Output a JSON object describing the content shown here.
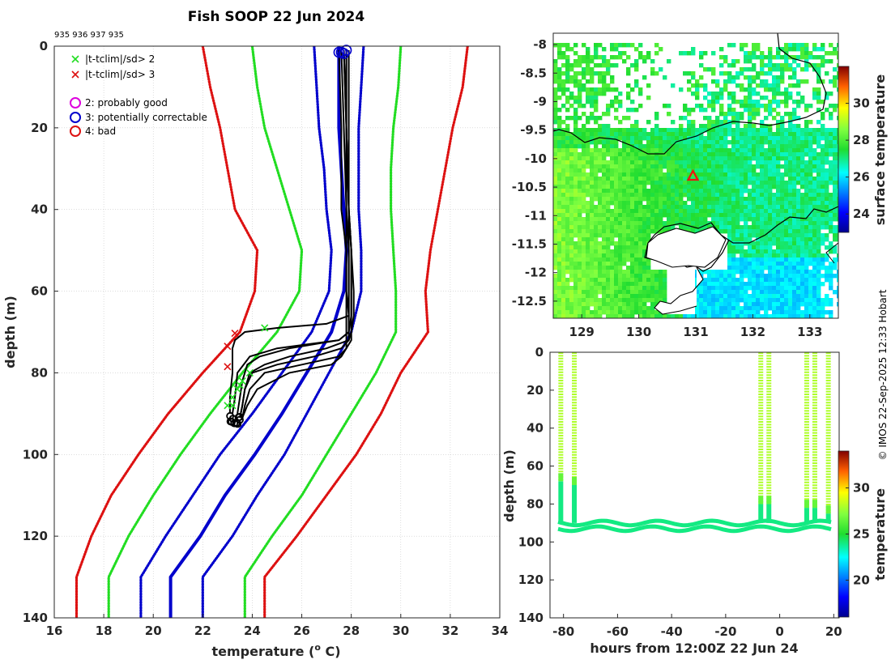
{
  "title": "Fish SOOP 22 Jun 2024",
  "subtitle_ids": "935 936 937 935",
  "credit": "© IMOS 22-Sep-2025 12:33 Hobart",
  "colors": {
    "green": "#22dd22",
    "red": "#dd1111",
    "blue": "#0000cc",
    "black": "#000000",
    "magenta": "#dd00dd"
  },
  "chart_data": [
    {
      "type": "line",
      "name": "profile",
      "xlabel": "temperature (",
      "xlabel_sup": "o",
      "xlabel_end": " C)",
      "ylabel": "depth (m)",
      "xlim": [
        16,
        34
      ],
      "ylim": [
        140,
        0
      ],
      "xticks": [
        16,
        18,
        20,
        22,
        24,
        26,
        28,
        30,
        32,
        34
      ],
      "yticks": [
        0,
        20,
        40,
        60,
        80,
        100,
        120,
        140
      ],
      "legend": [
        {
          "label": "|t-tclim|/sd> 2",
          "marker": "x",
          "color": "green"
        },
        {
          "label": "|t-tclim|/sd> 3",
          "marker": "x",
          "color": "red"
        },
        {
          "label": "2: probably good",
          "marker": "o",
          "color": "magenta"
        },
        {
          "label": "3: potentially correctable",
          "marker": "o",
          "color": "blue"
        },
        {
          "label": "4: bad",
          "marker": "o",
          "color": "red"
        }
      ],
      "climatology_depths": [
        0,
        10,
        20,
        30,
        40,
        50,
        60,
        70,
        80,
        90,
        100,
        110,
        120,
        130,
        140
      ],
      "series": [
        {
          "name": "red-left",
          "color": "red",
          "style": "dotted",
          "x": [
            22.0,
            22.3,
            22.7,
            23.0,
            23.3,
            24.2,
            24.1,
            23.5,
            22.0,
            20.6,
            19.4,
            18.3,
            17.5,
            16.9,
            16.9
          ]
        },
        {
          "name": "green-left",
          "color": "green",
          "style": "dotted",
          "x": [
            24.0,
            24.2,
            24.5,
            25.0,
            25.5,
            26.0,
            25.9,
            25.0,
            23.6,
            22.3,
            21.1,
            20.0,
            19.0,
            18.2,
            18.2
          ]
        },
        {
          "name": "blue-left",
          "color": "blue",
          "style": "dotted",
          "x": [
            26.5,
            26.6,
            26.7,
            26.9,
            27.0,
            27.2,
            27.1,
            26.4,
            25.2,
            24.0,
            22.7,
            21.6,
            20.5,
            19.5,
            19.5
          ]
        },
        {
          "name": "climatology-mean",
          "color": "blue",
          "style": "solid",
          "x": [
            27.5,
            27.5,
            27.5,
            27.6,
            27.7,
            27.8,
            27.7,
            27.2,
            26.2,
            25.2,
            24.1,
            22.9,
            21.9,
            20.7,
            20.7
          ]
        },
        {
          "name": "blue-right",
          "color": "blue",
          "style": "dotted",
          "x": [
            28.5,
            28.4,
            28.3,
            28.3,
            28.3,
            28.4,
            28.4,
            28.0,
            27.1,
            26.2,
            25.3,
            24.2,
            23.2,
            22.0,
            22.0
          ]
        },
        {
          "name": "green-right",
          "color": "green",
          "style": "dotted",
          "x": [
            30.0,
            29.9,
            29.7,
            29.6,
            29.6,
            29.7,
            29.8,
            29.8,
            29.0,
            28.0,
            27.0,
            26.0,
            24.8,
            23.7,
            23.7
          ]
        },
        {
          "name": "red-right",
          "color": "red",
          "style": "dotted",
          "x": [
            32.7,
            32.5,
            32.1,
            31.8,
            31.5,
            31.2,
            31.0,
            31.1,
            30.0,
            29.2,
            28.2,
            27.0,
            25.8,
            24.5,
            24.5
          ]
        }
      ],
      "casts": [
        {
          "depth": [
            1,
            20,
            40,
            50,
            60,
            66,
            68,
            69,
            70,
            72,
            74,
            80,
            86,
            90
          ],
          "temp": [
            27.5,
            27.6,
            27.6,
            27.8,
            27.8,
            27.9,
            27.0,
            25.0,
            23.7,
            23.3,
            23.2,
            23.2,
            23.1,
            23.1
          ]
        },
        {
          "depth": [
            1,
            20,
            40,
            50,
            60,
            66,
            70,
            72,
            74,
            76,
            80,
            86,
            90
          ],
          "temp": [
            27.6,
            27.7,
            27.8,
            27.9,
            27.9,
            27.9,
            27.9,
            27.5,
            25.0,
            23.9,
            23.4,
            23.3,
            23.2
          ]
        },
        {
          "depth": [
            1,
            20,
            40,
            50,
            60,
            66,
            70,
            72,
            74,
            76,
            78,
            82,
            86,
            90
          ],
          "temp": [
            27.7,
            27.8,
            27.9,
            28.0,
            28.0,
            28.0,
            27.9,
            27.5,
            25.5,
            24.3,
            23.8,
            23.6,
            23.5,
            23.4
          ]
        },
        {
          "depth": [
            1,
            20,
            40,
            50,
            60,
            66,
            70,
            72,
            74,
            76,
            78,
            80,
            84,
            88,
            91
          ],
          "temp": [
            27.8,
            27.8,
            27.9,
            28.0,
            28.0,
            28.0,
            28.0,
            27.9,
            27.0,
            25.5,
            24.5,
            23.9,
            23.7,
            23.6,
            23.5
          ]
        },
        {
          "depth": [
            1,
            20,
            40,
            50,
            60,
            66,
            70,
            72,
            74,
            76,
            78,
            80,
            84,
            88,
            91
          ],
          "temp": [
            27.7,
            27.8,
            27.9,
            27.9,
            27.9,
            27.9,
            27.9,
            27.9,
            27.6,
            26.5,
            25.0,
            24.0,
            23.7,
            23.6,
            23.5
          ]
        },
        {
          "depth": [
            1,
            20,
            40,
            50,
            60,
            66,
            70,
            72,
            74,
            76,
            78,
            80,
            84,
            88,
            91
          ],
          "temp": [
            27.8,
            27.8,
            27.8,
            27.8,
            27.8,
            27.8,
            27.8,
            27.8,
            27.8,
            27.5,
            26.0,
            24.5,
            23.9,
            23.7,
            23.6
          ]
        },
        {
          "depth": [
            1,
            20,
            40,
            50,
            60,
            66,
            70,
            72,
            74,
            76,
            78,
            80,
            84,
            88,
            91
          ],
          "temp": [
            27.9,
            27.9,
            27.9,
            28.0,
            28.1,
            28.1,
            28.0,
            28.0,
            27.8,
            27.6,
            27.2,
            25.5,
            24.2,
            23.8,
            23.6
          ]
        }
      ],
      "flags_green": [
        [
          24.5,
          69
        ],
        [
          23.9,
          80
        ],
        [
          23.6,
          82
        ],
        [
          23.4,
          84
        ],
        [
          23.2,
          86
        ],
        [
          23.0,
          88
        ],
        [
          23.5,
          83
        ],
        [
          23.2,
          88
        ]
      ],
      "flags_red": [
        [
          23.3,
          70.3
        ],
        [
          23.0,
          73.5
        ],
        [
          23.0,
          78.5
        ]
      ],
      "qc_circles": [
        [
          27.5,
          1.5
        ],
        [
          27.6,
          1.5
        ],
        [
          27.8,
          1.0
        ],
        [
          27.7,
          1.8
        ]
      ],
      "bottom_blob": [
        23.3,
        91.5
      ]
    },
    {
      "type": "heatmap",
      "name": "sst-map",
      "colorbar_label": "surface temperature",
      "xlim": [
        128.5,
        133.5
      ],
      "ylim": [
        -12.8,
        -7.8
      ],
      "xticks": [
        129,
        130,
        131,
        132,
        133
      ],
      "yticks": [
        -8,
        -8.5,
        -9,
        -9.5,
        -10,
        -10.5,
        -11,
        -11.5,
        -12,
        -12.5
      ],
      "ytick_labels": [
        "-8",
        "-8.5",
        "-9",
        "-9.5",
        "-10",
        "-10.5",
        "-11",
        "-11.5",
        "-12",
        "-12.5"
      ],
      "clim": [
        23,
        32
      ],
      "cbar_ticks": [
        24,
        26,
        28,
        30
      ],
      "marker": {
        "lon": 130.95,
        "lat": -10.3,
        "symbol": "triangle",
        "color": "red"
      }
    },
    {
      "type": "scatter",
      "name": "section",
      "xlabel": "hours from 12:00Z 22 Jun 24",
      "ylabel": "depth (m)",
      "colorbar_label": "temperature",
      "xlim": [
        -85,
        22
      ],
      "ylim": [
        140,
        0
      ],
      "xticks": [
        -80,
        -60,
        -40,
        -20,
        0,
        20
      ],
      "yticks": [
        0,
        20,
        40,
        60,
        80,
        100,
        120,
        140
      ],
      "clim": [
        16,
        34
      ],
      "cbar_ticks": [
        20,
        25,
        30
      ],
      "casts_hours": [
        -81,
        -76,
        -7,
        -4,
        10,
        13,
        18
      ],
      "cast_bottom": [
        68,
        70,
        80,
        80,
        82,
        82,
        85
      ],
      "surface_temp": 28,
      "bottom_temp": 24,
      "bottom_layer": {
        "from_depth": 90,
        "to_depth": 93
      }
    }
  ]
}
